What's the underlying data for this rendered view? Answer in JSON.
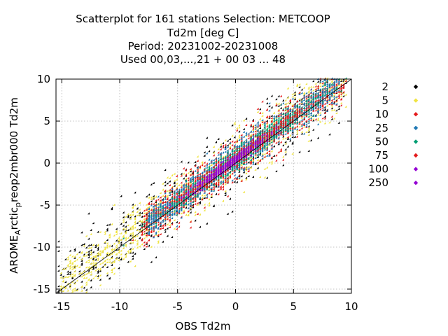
{
  "chart_data": {
    "type": "scatter",
    "title_lines": [
      "Scatterplot for  161 stations Selection: METCOOP",
      "Td2m [deg C]",
      "Period: 20231002-20231008",
      "Used  00,03,...,21  + 00 03 ... 48"
    ],
    "xlabel": "OBS Td2m",
    "ylabel": {
      "parts": [
        "AROME",
        "A",
        "rctic",
        "p",
        "reop2mbr000 Td2m"
      ]
    },
    "xlim": [
      -15.5,
      10
    ],
    "ylim": [
      -15.5,
      10
    ],
    "xticks": [
      "-15",
      "-10",
      "-5",
      "0",
      "5",
      "10"
    ],
    "yticks": [
      "10",
      "5",
      "0",
      "-5",
      "-10",
      "-15"
    ],
    "grid": true,
    "diagonal_line": true,
    "legend_position": "right",
    "series": [
      {
        "name": "2",
        "color": "#000000",
        "marker": "diamond",
        "spread": 3.4,
        "xrange": [
          -15.3,
          9.6
        ]
      },
      {
        "name": "5",
        "color": "#f0e442",
        "marker": "diamond",
        "spread": 2.7,
        "xrange": [
          -15.0,
          9.8
        ]
      },
      {
        "name": "10",
        "color": "#e41a1c",
        "marker": "diamond",
        "spread": 2.1,
        "xrange": [
          -8.0,
          9.6
        ]
      },
      {
        "name": "25",
        "color": "#1f78b4",
        "marker": "diamond",
        "spread": 1.6,
        "xrange": [
          -7.5,
          9.0
        ]
      },
      {
        "name": "50",
        "color": "#009e73",
        "marker": "diamond",
        "spread": 1.0,
        "xrange": [
          -6.0,
          8.0
        ]
      },
      {
        "name": "75",
        "color": "#e41a1c",
        "marker": "diamond",
        "spread": 0.7,
        "xrange": [
          -5.0,
          6.0
        ]
      },
      {
        "name": "100",
        "color": "#9400d3",
        "marker": "diamond",
        "spread": 0.5,
        "xrange": [
          -4.0,
          3.0
        ]
      },
      {
        "name": "250",
        "color": "#9400d3",
        "marker": "diamond",
        "spread": 0.3,
        "xrange": [
          -2.0,
          1.0
        ]
      }
    ]
  }
}
